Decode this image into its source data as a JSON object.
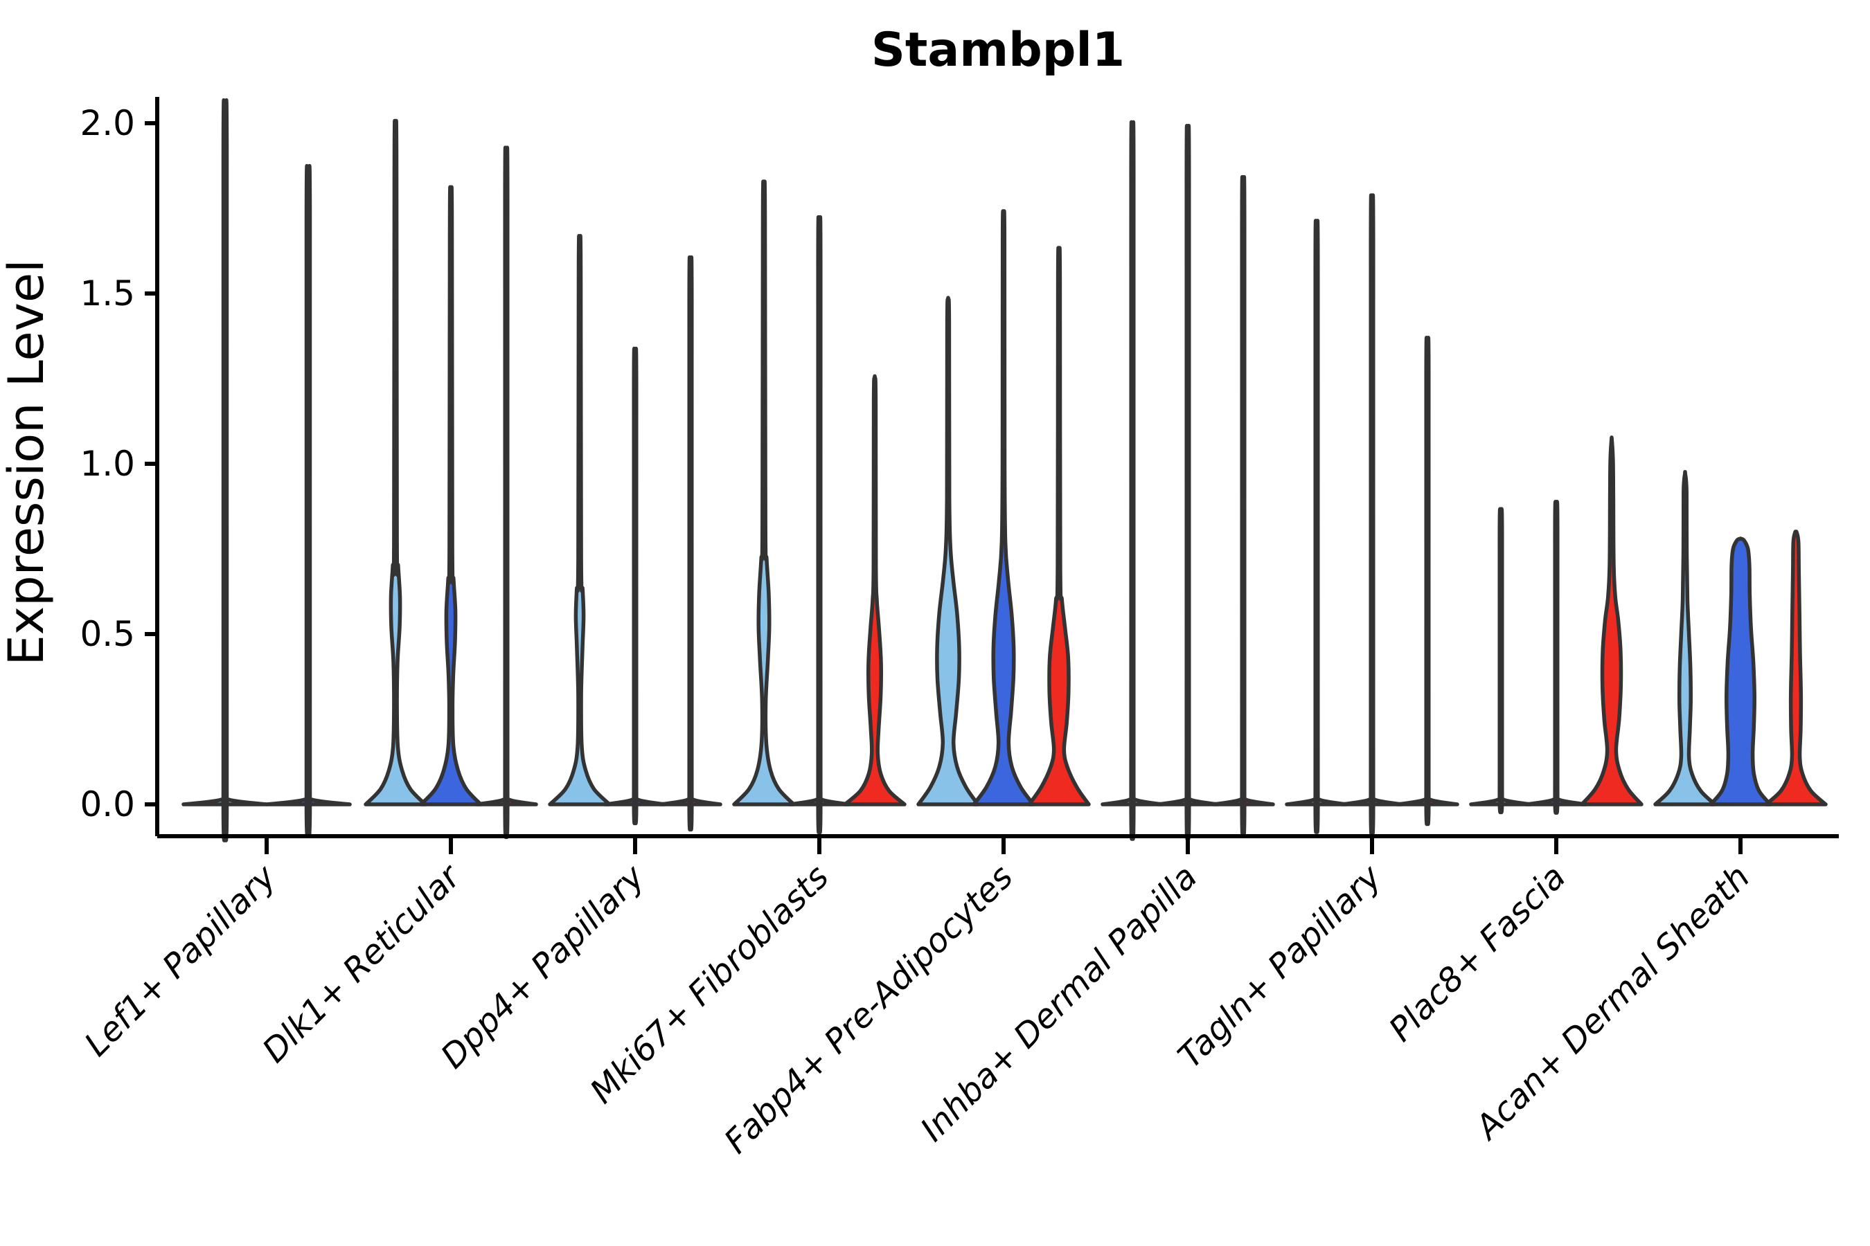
{
  "title": "Stambpl1",
  "y_axis": {
    "label": "Expression Level",
    "tick_labels": [
      "0.0",
      "0.5",
      "1.0",
      "1.5",
      "2.0"
    ],
    "tick_values": [
      0.0,
      0.5,
      1.0,
      1.5,
      2.0
    ]
  },
  "colors": {
    "blue_light": "#89C2E8",
    "blue_dark": "#3B66DE",
    "red": "#EE2A21",
    "outline": "#333333",
    "axis": "#000000"
  },
  "chart_data": {
    "type": "violin",
    "title": "Stambpl1",
    "xlabel": "",
    "ylabel": "Expression Level",
    "ylim": [
      0,
      2.07
    ],
    "yticks": [
      0.0,
      0.5,
      1.0,
      1.5,
      2.0
    ],
    "grid": false,
    "legend": "none",
    "categories": [
      "Lef1+ Papillary",
      "Dlk1+ Reticular",
      "Dpp4+ Papillary",
      "Mki67+ Fibroblasts",
      "Fabp4+ Pre-Adipocytes",
      "Inhba+ Dermal Papilla",
      "Tagln+ Papillary",
      "Plac8+ Fascia",
      "Acan+ Dermal Sheath"
    ],
    "violins": [
      {
        "category_index": 0,
        "split": 1,
        "color_key": "blue_light",
        "max": 1.97,
        "profile": "collapsed"
      },
      {
        "category_index": 0,
        "split": 2,
        "color_key": "blue_dark",
        "max": 1.79,
        "profile": "collapsed"
      },
      {
        "category_index": 1,
        "split": 1,
        "color_key": "blue_light",
        "max": 1.97,
        "profile": [
          [
            0,
            1
          ],
          [
            0.045,
            0.5
          ],
          [
            0.1,
            0.22
          ],
          [
            0.17,
            0.08
          ],
          [
            0.3,
            0.05
          ],
          [
            0.42,
            0.07
          ],
          [
            0.52,
            0.14
          ],
          [
            0.61,
            0.15
          ],
          [
            0.7,
            0.09
          ],
          [
            0.78,
            0.05
          ],
          [
            1.9,
            0.035
          ],
          [
            1.97,
            0.008
          ]
        ]
      },
      {
        "category_index": 1,
        "split": 2,
        "color_key": "blue_dark",
        "max": 1.78,
        "profile": [
          [
            0,
            1
          ],
          [
            0.045,
            0.52
          ],
          [
            0.1,
            0.24
          ],
          [
            0.17,
            0.085
          ],
          [
            0.28,
            0.055
          ],
          [
            0.38,
            0.08
          ],
          [
            0.48,
            0.14
          ],
          [
            0.57,
            0.15
          ],
          [
            0.66,
            0.09
          ],
          [
            0.75,
            0.05
          ],
          [
            1.72,
            0.035
          ],
          [
            1.78,
            0.008
          ]
        ]
      },
      {
        "category_index": 1,
        "split": 3,
        "color_key": "red",
        "max": 1.84,
        "profile": "collapsed"
      },
      {
        "category_index": 2,
        "split": 1,
        "color_key": "blue_light",
        "max": 1.65,
        "profile": [
          [
            0,
            1
          ],
          [
            0.045,
            0.48
          ],
          [
            0.1,
            0.2
          ],
          [
            0.17,
            0.07
          ],
          [
            0.32,
            0.05
          ],
          [
            0.45,
            0.09
          ],
          [
            0.55,
            0.13
          ],
          [
            0.63,
            0.1
          ],
          [
            0.72,
            0.05
          ],
          [
            1.58,
            0.035
          ],
          [
            1.65,
            0.008
          ]
        ]
      },
      {
        "category_index": 2,
        "split": 2,
        "color_key": "blue_dark",
        "max": 1.29,
        "profile": "collapsed"
      },
      {
        "category_index": 2,
        "split": 3,
        "color_key": "red",
        "max": 1.54,
        "profile": "collapsed"
      },
      {
        "category_index": 3,
        "split": 1,
        "color_key": "blue_light",
        "max": 1.8,
        "profile": [
          [
            0,
            1
          ],
          [
            0.045,
            0.5
          ],
          [
            0.1,
            0.22
          ],
          [
            0.18,
            0.08
          ],
          [
            0.3,
            0.06
          ],
          [
            0.42,
            0.13
          ],
          [
            0.52,
            0.18
          ],
          [
            0.62,
            0.16
          ],
          [
            0.72,
            0.09
          ],
          [
            0.82,
            0.05
          ],
          [
            1.74,
            0.035
          ],
          [
            1.8,
            0.008
          ]
        ]
      },
      {
        "category_index": 3,
        "split": 2,
        "color_key": "blue_dark",
        "max": 1.65,
        "profile": "collapsed"
      },
      {
        "category_index": 3,
        "split": 3,
        "color_key": "red",
        "max": 1.25,
        "profile": [
          [
            0,
            1
          ],
          [
            0.04,
            0.48
          ],
          [
            0.09,
            0.2
          ],
          [
            0.15,
            0.1
          ],
          [
            0.22,
            0.13
          ],
          [
            0.32,
            0.2
          ],
          [
            0.42,
            0.21
          ],
          [
            0.52,
            0.14
          ],
          [
            0.6,
            0.07
          ],
          [
            0.7,
            0.04
          ],
          [
            1.19,
            0.032
          ],
          [
            1.25,
            0.008
          ]
        ]
      },
      {
        "category_index": 4,
        "split": 1,
        "color_key": "blue_light",
        "max": 1.48,
        "profile": [
          [
            0,
            1
          ],
          [
            0.05,
            0.6
          ],
          [
            0.11,
            0.3
          ],
          [
            0.18,
            0.18
          ],
          [
            0.27,
            0.27
          ],
          [
            0.37,
            0.36
          ],
          [
            0.46,
            0.37
          ],
          [
            0.56,
            0.3
          ],
          [
            0.66,
            0.17
          ],
          [
            0.75,
            0.08
          ],
          [
            0.9,
            0.04
          ],
          [
            1.42,
            0.032
          ],
          [
            1.48,
            0.008
          ]
        ]
      },
      {
        "category_index": 4,
        "split": 2,
        "color_key": "blue_dark",
        "max": 1.73,
        "profile": [
          [
            0,
            1
          ],
          [
            0.05,
            0.58
          ],
          [
            0.11,
            0.28
          ],
          [
            0.18,
            0.17
          ],
          [
            0.27,
            0.25
          ],
          [
            0.37,
            0.33
          ],
          [
            0.46,
            0.34
          ],
          [
            0.56,
            0.27
          ],
          [
            0.66,
            0.15
          ],
          [
            0.77,
            0.06
          ],
          [
            1.0,
            0.035
          ],
          [
            1.67,
            0.03
          ],
          [
            1.73,
            0.008
          ]
        ]
      },
      {
        "category_index": 4,
        "split": 3,
        "color_key": "red",
        "max": 1.61,
        "profile": [
          [
            0,
            1
          ],
          [
            0.05,
            0.6
          ],
          [
            0.11,
            0.28
          ],
          [
            0.16,
            0.17
          ],
          [
            0.24,
            0.26
          ],
          [
            0.33,
            0.32
          ],
          [
            0.43,
            0.31
          ],
          [
            0.52,
            0.2
          ],
          [
            0.6,
            0.1
          ],
          [
            0.7,
            0.045
          ],
          [
            1.55,
            0.032
          ],
          [
            1.61,
            0.008
          ]
        ]
      },
      {
        "category_index": 5,
        "split": 1,
        "color_key": "blue_light",
        "max": 1.91,
        "profile": "collapsed"
      },
      {
        "category_index": 5,
        "split": 2,
        "color_key": "blue_dark",
        "max": 1.9,
        "profile": "collapsed"
      },
      {
        "category_index": 5,
        "split": 3,
        "color_key": "red",
        "max": 1.76,
        "profile": "collapsed"
      },
      {
        "category_index": 6,
        "split": 1,
        "color_key": "blue_light",
        "max": 1.64,
        "profile": "collapsed"
      },
      {
        "category_index": 6,
        "split": 2,
        "color_key": "blue_dark",
        "max": 1.71,
        "profile": "collapsed"
      },
      {
        "category_index": 6,
        "split": 3,
        "color_key": "red",
        "max": 1.32,
        "profile": "collapsed"
      },
      {
        "category_index": 7,
        "split": 1,
        "color_key": "blue_light",
        "max": 0.85,
        "profile": "collapsed"
      },
      {
        "category_index": 7,
        "split": 2,
        "color_key": "blue_dark",
        "max": 0.87,
        "profile": "collapsed"
      },
      {
        "category_index": 7,
        "split": 3,
        "color_key": "red",
        "max": 1.07,
        "profile": [
          [
            0,
            1
          ],
          [
            0.045,
            0.55
          ],
          [
            0.1,
            0.26
          ],
          [
            0.16,
            0.15
          ],
          [
            0.25,
            0.25
          ],
          [
            0.35,
            0.31
          ],
          [
            0.45,
            0.3
          ],
          [
            0.54,
            0.22
          ],
          [
            0.61,
            0.12
          ],
          [
            0.7,
            0.07
          ],
          [
            0.9,
            0.055
          ],
          [
            1.01,
            0.045
          ],
          [
            1.07,
            0.008
          ]
        ]
      },
      {
        "category_index": 8,
        "split": 1,
        "color_key": "blue_light",
        "max": 0.97,
        "profile": [
          [
            0,
            1
          ],
          [
            0.04,
            0.52
          ],
          [
            0.09,
            0.23
          ],
          [
            0.14,
            0.13
          ],
          [
            0.22,
            0.16
          ],
          [
            0.3,
            0.19
          ],
          [
            0.4,
            0.18
          ],
          [
            0.5,
            0.13
          ],
          [
            0.6,
            0.08
          ],
          [
            0.75,
            0.055
          ],
          [
            0.92,
            0.05
          ],
          [
            0.97,
            0.008
          ]
        ]
      },
      {
        "category_index": 8,
        "split": 2,
        "color_key": "blue_dark",
        "max": 0.78,
        "profile": [
          [
            0,
            1
          ],
          [
            0.04,
            0.62
          ],
          [
            0.09,
            0.45
          ],
          [
            0.15,
            0.41
          ],
          [
            0.23,
            0.45
          ],
          [
            0.32,
            0.47
          ],
          [
            0.42,
            0.43
          ],
          [
            0.52,
            0.35
          ],
          [
            0.62,
            0.31
          ],
          [
            0.7,
            0.3
          ],
          [
            0.75,
            0.25
          ],
          [
            0.775,
            0.12
          ],
          [
            0.78,
            0.008
          ]
        ]
      },
      {
        "category_index": 8,
        "split": 3,
        "color_key": "red",
        "max": 0.8,
        "profile": [
          [
            0,
            1
          ],
          [
            0.04,
            0.5
          ],
          [
            0.09,
            0.22
          ],
          [
            0.14,
            0.13
          ],
          [
            0.22,
            0.16
          ],
          [
            0.32,
            0.17
          ],
          [
            0.44,
            0.14
          ],
          [
            0.56,
            0.12
          ],
          [
            0.68,
            0.1
          ],
          [
            0.77,
            0.085
          ],
          [
            0.798,
            0.03
          ],
          [
            0.8,
            0.008
          ]
        ]
      }
    ]
  }
}
